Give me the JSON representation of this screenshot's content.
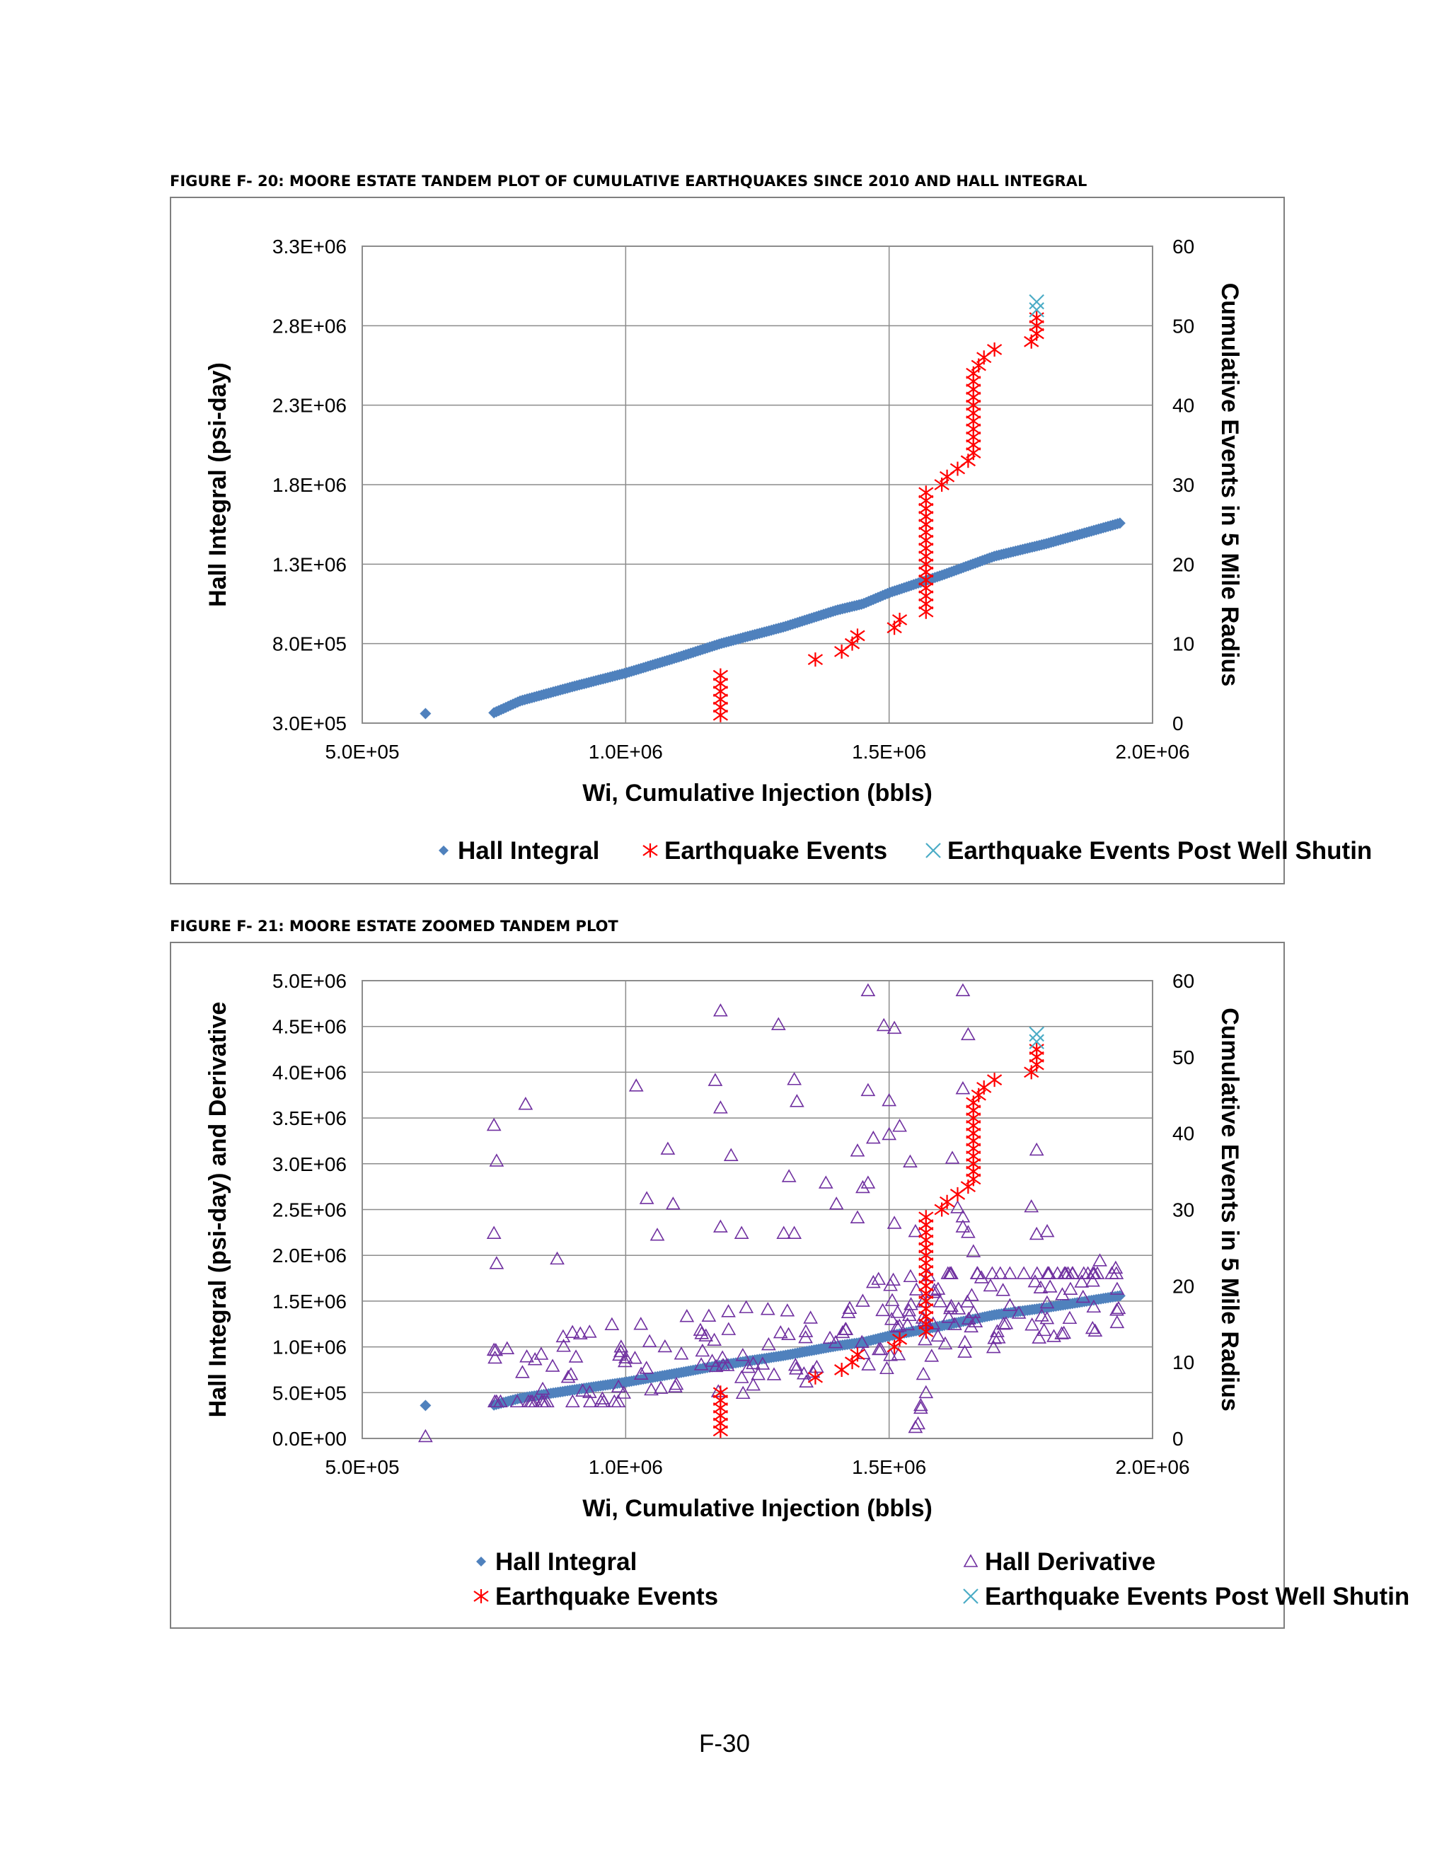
{
  "page_number": "F-30",
  "colors": {
    "hall_integral": "#4f81bd",
    "hall_derivative": "#7030a0",
    "earthquake": "#ff0000",
    "post_shutin": "#4bacc6",
    "grid": "#8c8c8c",
    "frame": "#7f7f7f"
  },
  "chart_data": [
    {
      "id": "fig20",
      "caption": "FIGURE F- 20:  MOORE ESTATE TANDEM PLOT OF CUMULATIVE EARTHQUAKES SINCE 2010 AND HALL INTEGRAL",
      "type": "scatter",
      "xlabel": "Wi, Cumulative Injection (bbls)",
      "ylabel": "Hall Integral (psi-day)",
      "y2label": "Cumulative Events in 5 Mile Radius",
      "xlim": [
        500000,
        2000000
      ],
      "ylim": [
        300000,
        3300000
      ],
      "y2lim": [
        0,
        60
      ],
      "x_ticks": [
        500000,
        1000000,
        1500000,
        2000000
      ],
      "x_tick_labels": [
        "5.0E+05",
        "1.0E+06",
        "1.5E+06",
        "2.0E+06"
      ],
      "y_ticks": [
        300000,
        800000,
        1300000,
        1800000,
        2300000,
        2800000,
        3300000
      ],
      "y_tick_labels": [
        "3.0E+05",
        "8.0E+05",
        "1.3E+06",
        "1.8E+06",
        "2.3E+06",
        "2.8E+06",
        "3.3E+06"
      ],
      "y2_ticks": [
        0,
        10,
        20,
        30,
        40,
        50,
        60
      ],
      "y2_tick_labels": [
        "0",
        "10",
        "20",
        "30",
        "40",
        "50",
        "60"
      ],
      "grid": true,
      "legend_position": "bottom",
      "legend": [
        "Hall Integral",
        "Earthquake Events",
        "Earthquake Events Post Well Shutin"
      ],
      "series": [
        {
          "name": "Hall Integral",
          "axis": "left",
          "marker": "diamond",
          "isolated_point": [
            620000,
            360000
          ],
          "curve": [
            [
              750000,
              365000
            ],
            [
              800000,
              440000
            ],
            [
              900000,
              530000
            ],
            [
              1000000,
              615000
            ],
            [
              1100000,
              715000
            ],
            [
              1180000,
              800000
            ],
            [
              1300000,
              905000
            ],
            [
              1400000,
              1010000
            ],
            [
              1450000,
              1050000
            ],
            [
              1500000,
              1120000
            ],
            [
              1600000,
              1230000
            ],
            [
              1700000,
              1350000
            ],
            [
              1800000,
              1430000
            ],
            [
              1940000,
              1560000
            ]
          ]
        },
        {
          "name": "Earthquake Events",
          "axis": "right",
          "marker": "asterisk",
          "points": [
            [
              1180000,
              1
            ],
            [
              1180000,
              2
            ],
            [
              1180000,
              3
            ],
            [
              1180000,
              4
            ],
            [
              1180000,
              5
            ],
            [
              1180000,
              6
            ],
            [
              1360000,
              8
            ],
            [
              1410000,
              9
            ],
            [
              1430000,
              10
            ],
            [
              1440000,
              11
            ],
            [
              1510000,
              12
            ],
            [
              1520000,
              13
            ],
            [
              1570000,
              14
            ],
            [
              1570000,
              15
            ],
            [
              1570000,
              16
            ],
            [
              1570000,
              17
            ],
            [
              1570000,
              18
            ],
            [
              1570000,
              19
            ],
            [
              1570000,
              20
            ],
            [
              1570000,
              21
            ],
            [
              1570000,
              22
            ],
            [
              1570000,
              23
            ],
            [
              1570000,
              24
            ],
            [
              1570000,
              25
            ],
            [
              1570000,
              26
            ],
            [
              1570000,
              27
            ],
            [
              1570000,
              28
            ],
            [
              1570000,
              29
            ],
            [
              1600000,
              30
            ],
            [
              1610000,
              31
            ],
            [
              1630000,
              32
            ],
            [
              1650000,
              33
            ],
            [
              1660000,
              34
            ],
            [
              1660000,
              35
            ],
            [
              1660000,
              36
            ],
            [
              1660000,
              37
            ],
            [
              1660000,
              38
            ],
            [
              1660000,
              39
            ],
            [
              1660000,
              40
            ],
            [
              1660000,
              41
            ],
            [
              1660000,
              42
            ],
            [
              1660000,
              43
            ],
            [
              1660000,
              44
            ],
            [
              1670000,
              45
            ],
            [
              1680000,
              46
            ],
            [
              1700000,
              47
            ],
            [
              1770000,
              48
            ],
            [
              1780000,
              49
            ],
            [
              1780000,
              50
            ],
            [
              1780000,
              51
            ]
          ]
        },
        {
          "name": "Earthquake Events Post Well Shutin",
          "axis": "right",
          "marker": "x",
          "points": [
            [
              1780000,
              52
            ],
            [
              1780000,
              53
            ]
          ]
        }
      ]
    },
    {
      "id": "fig21",
      "caption": "FIGURE F- 21:  MOORE ESTATE ZOOMED TANDEM PLOT",
      "type": "scatter",
      "xlabel": "Wi, Cumulative Injection (bbls)",
      "ylabel": "Hall Integral (psi-day) and Derivative",
      "y2label": "Cumulative Events in 5 Mile Radius",
      "xlim": [
        500000,
        2000000
      ],
      "ylim": [
        0,
        5000000
      ],
      "y2lim": [
        0,
        60
      ],
      "x_ticks": [
        500000,
        1000000,
        1500000,
        2000000
      ],
      "x_tick_labels": [
        "5.0E+05",
        "1.0E+06",
        "1.5E+06",
        "2.0E+06"
      ],
      "y_ticks": [
        0,
        500000,
        1000000,
        1500000,
        2000000,
        2500000,
        3000000,
        3500000,
        4000000,
        4500000,
        5000000
      ],
      "y_tick_labels": [
        "0.0E+00",
        "5.0E+05",
        "1.0E+06",
        "1.5E+06",
        "2.0E+06",
        "2.5E+06",
        "3.0E+06",
        "3.5E+06",
        "4.0E+06",
        "4.5E+06",
        "5.0E+06"
      ],
      "y2_ticks": [
        0,
        10,
        20,
        30,
        40,
        50,
        60
      ],
      "y2_tick_labels": [
        "0",
        "10",
        "20",
        "30",
        "40",
        "50",
        "60"
      ],
      "grid": true,
      "legend_position": "bottom",
      "legend": [
        "Hall Integral",
        "Hall Derivative",
        "Earthquake Events",
        "Earthquake Events Post Well Shutin"
      ],
      "series": [
        {
          "name": "Hall Integral",
          "axis": "left",
          "marker": "diamond",
          "isolated_point": [
            620000,
            360000
          ],
          "curve": [
            [
              750000,
              365000
            ],
            [
              800000,
              440000
            ],
            [
              900000,
              530000
            ],
            [
              1000000,
              615000
            ],
            [
              1100000,
              715000
            ],
            [
              1180000,
              800000
            ],
            [
              1300000,
              905000
            ],
            [
              1400000,
              1010000
            ],
            [
              1450000,
              1050000
            ],
            [
              1500000,
              1120000
            ],
            [
              1600000,
              1230000
            ],
            [
              1700000,
              1350000
            ],
            [
              1800000,
              1430000
            ],
            [
              1940000,
              1560000
            ]
          ]
        },
        {
          "name": "Hall Derivative",
          "axis": "left",
          "marker": "triangle",
          "points": [
            [
              620000,
              20000
            ],
            [
              750000,
              3420000
            ],
            [
              755000,
              3030000
            ],
            [
              750000,
              2240000
            ],
            [
              755000,
              1910000
            ],
            [
              810000,
              3650000
            ],
            [
              870000,
              1960000
            ],
            [
              1020000,
              3850000
            ],
            [
              1080000,
              3160000
            ],
            [
              1040000,
              2620000
            ],
            [
              1060000,
              2220000
            ],
            [
              1090000,
              2560000
            ],
            [
              1170000,
              3910000
            ],
            [
              1180000,
              4670000
            ],
            [
              1180000,
              3610000
            ],
            [
              1200000,
              3090000
            ],
            [
              1180000,
              2310000
            ],
            [
              1220000,
              2240000
            ],
            [
              1290000,
              4520000
            ],
            [
              1320000,
              3920000
            ],
            [
              1325000,
              3680000
            ],
            [
              1310000,
              2860000
            ],
            [
              1300000,
              2240000
            ],
            [
              1320000,
              2240000
            ],
            [
              1380000,
              2790000
            ],
            [
              1400000,
              2560000
            ],
            [
              1460000,
              4890000
            ],
            [
              1460000,
              3800000
            ],
            [
              1470000,
              3280000
            ],
            [
              1440000,
              3140000
            ],
            [
              1450000,
              2740000
            ],
            [
              1460000,
              2790000
            ],
            [
              1440000,
              2410000
            ],
            [
              1490000,
              4510000
            ],
            [
              1510000,
              4480000
            ],
            [
              1500000,
              3690000
            ],
            [
              1500000,
              3320000
            ],
            [
              1520000,
              3410000
            ],
            [
              1540000,
              3020000
            ],
            [
              1510000,
              2350000
            ],
            [
              1550000,
              2260000
            ],
            [
              1640000,
              4890000
            ],
            [
              1650000,
              4410000
            ],
            [
              1640000,
              3820000
            ],
            [
              1620000,
              3060000
            ],
            [
              1630000,
              2520000
            ],
            [
              1640000,
              2420000
            ],
            [
              1640000,
              2310000
            ],
            [
              1650000,
              2250000
            ],
            [
              1660000,
              2040000
            ],
            [
              1780000,
              3150000
            ],
            [
              1770000,
              2530000
            ],
            [
              1780000,
              2230000
            ],
            [
              1800000,
              2260000
            ],
            [
              1900000,
              1940000
            ],
            [
              1930000,
              1860000
            ],
            [
              1560000,
              330000
            ],
            [
              1555000,
              160000
            ],
            [
              1550000,
              120000
            ],
            [
              1560000,
              360000
            ],
            [
              1570000,
              500000
            ],
            [
              1565000,
              700000
            ]
          ],
          "band_seed": 7,
          "band": {
            "x_start": 750000,
            "x_end": 1940000,
            "count": 220,
            "y_min": 400000,
            "y_max": 1800000
          }
        },
        {
          "name": "Earthquake Events",
          "axis": "right",
          "marker": "asterisk",
          "points": [
            [
              1180000,
              1
            ],
            [
              1180000,
              2
            ],
            [
              1180000,
              3
            ],
            [
              1180000,
              4
            ],
            [
              1180000,
              5
            ],
            [
              1180000,
              6
            ],
            [
              1360000,
              8
            ],
            [
              1410000,
              9
            ],
            [
              1430000,
              10
            ],
            [
              1440000,
              11
            ],
            [
              1510000,
              12
            ],
            [
              1520000,
              13
            ],
            [
              1570000,
              14
            ],
            [
              1570000,
              15
            ],
            [
              1570000,
              16
            ],
            [
              1570000,
              17
            ],
            [
              1570000,
              18
            ],
            [
              1570000,
              19
            ],
            [
              1570000,
              20
            ],
            [
              1570000,
              21
            ],
            [
              1570000,
              22
            ],
            [
              1570000,
              23
            ],
            [
              1570000,
              24
            ],
            [
              1570000,
              25
            ],
            [
              1570000,
              26
            ],
            [
              1570000,
              27
            ],
            [
              1570000,
              28
            ],
            [
              1570000,
              29
            ],
            [
              1600000,
              30
            ],
            [
              1610000,
              31
            ],
            [
              1630000,
              32
            ],
            [
              1650000,
              33
            ],
            [
              1660000,
              34
            ],
            [
              1660000,
              35
            ],
            [
              1660000,
              36
            ],
            [
              1660000,
              37
            ],
            [
              1660000,
              38
            ],
            [
              1660000,
              39
            ],
            [
              1660000,
              40
            ],
            [
              1660000,
              41
            ],
            [
              1660000,
              42
            ],
            [
              1660000,
              43
            ],
            [
              1660000,
              44
            ],
            [
              1670000,
              45
            ],
            [
              1680000,
              46
            ],
            [
              1700000,
              47
            ],
            [
              1770000,
              48
            ],
            [
              1780000,
              49
            ],
            [
              1780000,
              50
            ],
            [
              1780000,
              51
            ]
          ]
        },
        {
          "name": "Earthquake Events Post Well Shutin",
          "axis": "right",
          "marker": "x",
          "points": [
            [
              1780000,
              52
            ],
            [
              1780000,
              53
            ]
          ]
        }
      ]
    }
  ]
}
